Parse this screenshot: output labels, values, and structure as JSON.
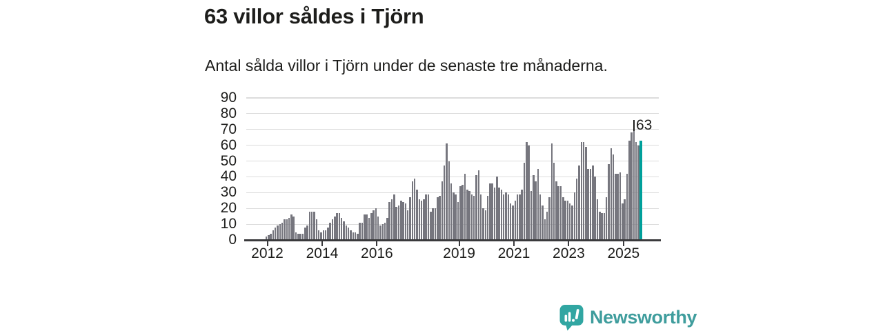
{
  "header": {
    "title": "63 villor såldes i Tjörn",
    "subtitle": "Antal sålda villor i Tjörn under de senaste tre månaderna."
  },
  "chart_data": {
    "type": "bar",
    "title": "63 villor såldes i Tjörn",
    "subtitle": "Antal sålda villor i Tjörn under de senaste tre månaderna.",
    "unit": "sålda villor (rullande tre månader)",
    "frequency": "monthly",
    "x_start": "2012-01",
    "x_end": "2025-09",
    "series": [
      {
        "year": 2012,
        "monthly": [
          2,
          3,
          4,
          6,
          8,
          9,
          10,
          11,
          13,
          13,
          14,
          16
        ]
      },
      {
        "year": 2013,
        "monthly": [
          15,
          5,
          4,
          4,
          4,
          8,
          9,
          18,
          18,
          18,
          13,
          6
        ]
      },
      {
        "year": 2014,
        "monthly": [
          5,
          6,
          6,
          8,
          11,
          13,
          15,
          17,
          17,
          14,
          12,
          9
        ]
      },
      {
        "year": 2015,
        "monthly": [
          8,
          6,
          5,
          5,
          4,
          11,
          11,
          16,
          16,
          14,
          17,
          19
        ]
      },
      {
        "year": 2016,
        "monthly": [
          20,
          15,
          9,
          10,
          11,
          14,
          24,
          26,
          29,
          21,
          22,
          25
        ]
      },
      {
        "year": 2017,
        "monthly": [
          24,
          23,
          19,
          27,
          37,
          39,
          32,
          26,
          25,
          26,
          29,
          29
        ]
      },
      {
        "year": 2018,
        "monthly": [
          18,
          20,
          20,
          27,
          28,
          37,
          47,
          61,
          50,
          36,
          30,
          29
        ]
      },
      {
        "year": 2019,
        "monthly": [
          24,
          34,
          35,
          42,
          32,
          31,
          29,
          28,
          41,
          44,
          29,
          20
        ]
      },
      {
        "year": 2020,
        "monthly": [
          19,
          28,
          36,
          36,
          33,
          40,
          33,
          32,
          29,
          30,
          29,
          23
        ]
      },
      {
        "year": 2021,
        "monthly": [
          22,
          25,
          29,
          29,
          32,
          49,
          62,
          60,
          31,
          41,
          37,
          45
        ]
      },
      {
        "year": 2022,
        "monthly": [
          29,
          22,
          13,
          18,
          27,
          61,
          49,
          37,
          34,
          34,
          27,
          25
        ]
      },
      {
        "year": 2023,
        "monthly": [
          25,
          23,
          22,
          30,
          39,
          47,
          62,
          62,
          59,
          45,
          45,
          47
        ]
      },
      {
        "year": 2024,
        "monthly": [
          40,
          26,
          18,
          17,
          17,
          27,
          48,
          58,
          54,
          42,
          42,
          43
        ]
      },
      {
        "year": 2025,
        "monthly": [
          23,
          26,
          42,
          63,
          68,
          72,
          62,
          60,
          63
        ]
      }
    ],
    "highlight_last_bar": true,
    "last_value": 63,
    "annotation": "63",
    "ylim": [
      0,
      90
    ],
    "yticks": [
      0,
      10,
      20,
      30,
      40,
      50,
      60,
      70,
      80,
      90
    ],
    "xtick_years": [
      2012,
      2014,
      2016,
      2019,
      2021,
      2023,
      2025
    ],
    "grid": "horizontal",
    "legend": "none",
    "colors": {
      "bar": "#76767e",
      "highlight": "#00a09b",
      "gridline": "#dcdcdc",
      "axis": "#3a3a3c",
      "text": "#1d1d1b"
    }
  },
  "footer": {
    "brand": "Newsworthy",
    "brand_color": "#3f9d9d",
    "logo_color": "#31a6a2"
  }
}
